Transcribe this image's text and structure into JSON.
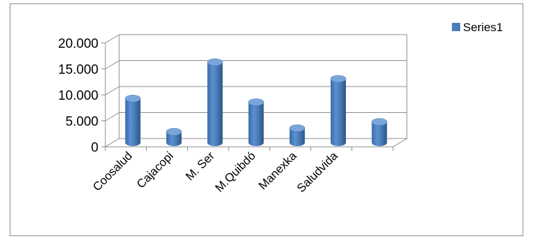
{
  "chart_data": {
    "type": "bar",
    "style": "3d-cylinder",
    "categories": [
      "Coosalud",
      "Cajacopi",
      "M. Ser",
      "M.Quibdó",
      "Manexka",
      "Saludvida",
      ""
    ],
    "series": [
      {
        "name": "Series1",
        "values": [
          8500,
          2100,
          15500,
          7800,
          2800,
          12300,
          4000
        ],
        "color": "#4a7ebb"
      }
    ],
    "yticks": [
      {
        "value": 0,
        "label": "0"
      },
      {
        "value": 5000,
        "label": "5.000"
      },
      {
        "value": 10000,
        "label": "10.000"
      },
      {
        "value": 15000,
        "label": "15.000"
      },
      {
        "value": 20000,
        "label": "20.000"
      }
    ],
    "ylim": [
      0,
      20000
    ],
    "grid": true,
    "legend_position": "top-right"
  }
}
